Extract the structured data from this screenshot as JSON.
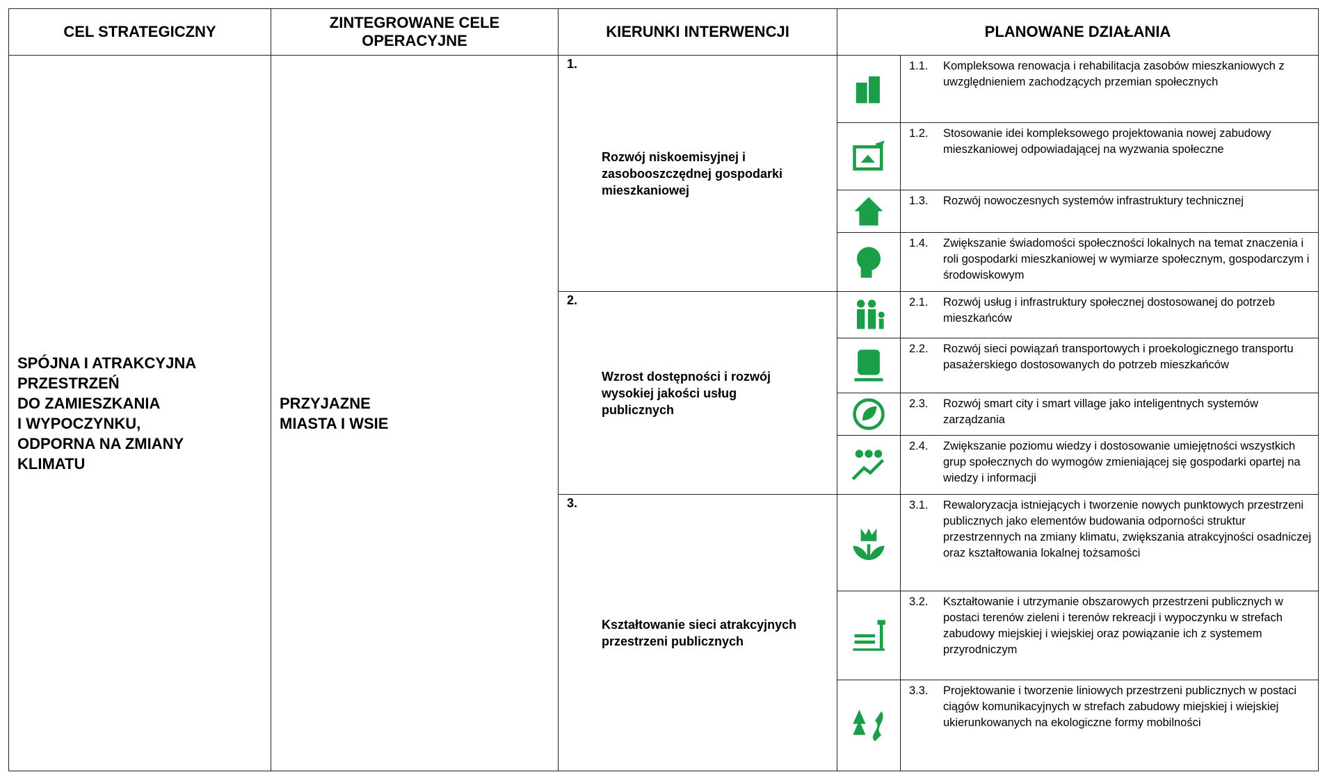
{
  "header": {
    "columns": [
      "CEL STRATEGICZNY",
      "ZINTEGROWANE CELE OPERACYJNE",
      "KIERUNKI INTERWENCJI",
      "PLANOWANE DZIAŁANIA"
    ]
  },
  "strategic_goal": {
    "lines": [
      "SPÓJNA I ATRAKCYJNA",
      "PRZESTRZEŃ",
      "DO ZAMIESZKANIA",
      "I WYPOCZYNKU,",
      "ODPORNA NA ZMIANY",
      "KLIMATU"
    ]
  },
  "operational_goal": {
    "lines": [
      "PRZYJAZNE",
      "MIASTA I WSIE"
    ]
  },
  "directions": [
    {
      "number": "1.",
      "text": "Rozwój niskoemisyjnej i zasobooszczędnej gospodarki mieszkaniowej",
      "actions": [
        {
          "number": "1.1.",
          "text": "Kompleksowa renowacja i rehabilitacja zasobów mieszkaniowych z uwzględnieniem zachodzących przemian społecznych"
        },
        {
          "number": "1.2.",
          "text": "Stosowanie idei kompleksowego projektowania nowej zabudowy mieszkaniowej odpowiadającej na wyzwania społeczne"
        },
        {
          "number": "1.3.",
          "text": "Rozwój nowoczesnych systemów infrastruktury technicznej"
        },
        {
          "number": "1.4.",
          "text": "Zwiększanie świadomości społeczności lokalnych na temat znaczenia i roli gospodarki mieszkaniowej w wymiarze społecznym, gospodarczym i środowiskowym"
        }
      ]
    },
    {
      "number": "2.",
      "text": "Wzrost dostępności i rozwój wysokiej jakości usług publicznych",
      "actions": [
        {
          "number": "2.1.",
          "text": "Rozwój usług i infrastruktury społecznej dostosowanej do potrzeb mieszkańców"
        },
        {
          "number": "2.2.",
          "text": "Rozwój sieci powiązań transportowych i proekologicznego transportu pasażerskiego dostosowanych do potrzeb mieszkańców"
        },
        {
          "number": "2.3.",
          "text": "Rozwój smart city i smart village jako inteligentnych systemów zarządzania"
        },
        {
          "number": "2.4.",
          "text": "Zwiększanie poziomu wiedzy i dostosowanie umiejętności wszystkich grup społecznych do wymogów zmieniającej się gospodarki opartej na wiedzy i informacji"
        }
      ]
    },
    {
      "number": "3.",
      "text": "Kształtowanie sieci atrakcyjnych przestrzeni publicznych",
      "actions": [
        {
          "number": "3.1.",
          "text": "Rewaloryzacja istniejących i tworzenie nowych punktowych przestrzeni publicznych jako elementów budowania odporności struktur przestrzennych na zmiany klimatu, zwiększania atrakcyjności osadniczej oraz kształtowania lokalnej tożsamości"
        },
        {
          "number": "3.2.",
          "text": "Kształtowanie i utrzymanie obszarowych przestrzeni publicznych w postaci terenów zieleni i terenów rekreacji i wypoczynku w strefach zabudowy miejskiej i wiejskiej oraz powiązanie ich z systemem przyrodniczym"
        },
        {
          "number": "3.3.",
          "text": "Projektowanie i tworzenie liniowych przestrzeni publicznych w postaci ciągów komunikacyjnych w strefach zabudowy miejskiej i wiejskiej ukierunkowanych na ekologiczne formy mobilności"
        }
      ]
    }
  ]
}
